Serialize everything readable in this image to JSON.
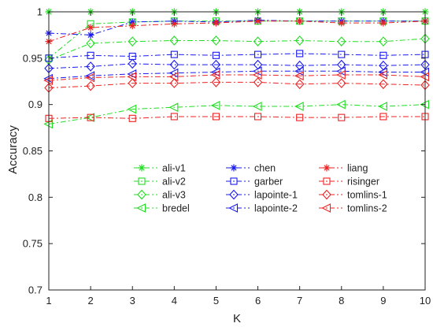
{
  "chart_data": {
    "type": "line",
    "title": "",
    "xlabel": "K",
    "ylabel": "Accuracy",
    "xlim": [
      1,
      10
    ],
    "ylim": [
      0.7,
      1.0
    ],
    "x": [
      1,
      2,
      3,
      4,
      5,
      6,
      7,
      8,
      9,
      10
    ],
    "x_ticks": [
      "1",
      "2",
      "3",
      "4",
      "5",
      "6",
      "7",
      "8",
      "9",
      "10"
    ],
    "y_ticks": [
      "0.7",
      "0.75",
      "0.8",
      "0.85",
      "0.9",
      "0.95",
      "1"
    ],
    "grid": false,
    "legend_position": "center",
    "legend_columns": 3,
    "series": [
      {
        "name": "ali-v1",
        "color": "#22dd22",
        "marker": "asterisk",
        "values": [
          1.0,
          1.0,
          1.0,
          1.0,
          1.0,
          1.0,
          1.0,
          1.0,
          1.0,
          1.0
        ]
      },
      {
        "name": "ali-v2",
        "color": "#22dd22",
        "marker": "square",
        "values": [
          0.95,
          0.987,
          0.989,
          0.99,
          0.99,
          0.99,
          0.99,
          0.99,
          0.99,
          0.99
        ]
      },
      {
        "name": "ali-v3",
        "color": "#22dd22",
        "marker": "diamond",
        "values": [
          0.948,
          0.966,
          0.968,
          0.969,
          0.969,
          0.968,
          0.969,
          0.968,
          0.968,
          0.971
        ]
      },
      {
        "name": "bredel",
        "color": "#22dd22",
        "marker": "triangle-left",
        "values": [
          0.879,
          0.886,
          0.895,
          0.897,
          0.899,
          0.898,
          0.898,
          0.9,
          0.898,
          0.9
        ]
      },
      {
        "name": "chen",
        "color": "#1a1aee",
        "marker": "asterisk",
        "values": [
          0.977,
          0.975,
          0.989,
          0.99,
          0.989,
          0.991,
          0.99,
          0.99,
          0.99,
          0.99
        ]
      },
      {
        "name": "garber",
        "color": "#1a1aee",
        "marker": "square",
        "values": [
          0.95,
          0.953,
          0.952,
          0.954,
          0.953,
          0.954,
          0.955,
          0.954,
          0.953,
          0.954
        ]
      },
      {
        "name": "lapointe-1",
        "color": "#1a1aee",
        "marker": "diamond",
        "values": [
          0.939,
          0.941,
          0.944,
          0.943,
          0.943,
          0.943,
          0.942,
          0.943,
          0.942,
          0.943
        ]
      },
      {
        "name": "lapointe-2",
        "color": "#1a1aee",
        "marker": "triangle-left",
        "values": [
          0.928,
          0.931,
          0.933,
          0.934,
          0.935,
          0.936,
          0.936,
          0.936,
          0.935,
          0.935
        ]
      },
      {
        "name": "liang",
        "color": "#ee2222",
        "marker": "asterisk",
        "values": [
          0.968,
          0.983,
          0.985,
          0.987,
          0.988,
          0.99,
          0.99,
          0.988,
          0.988,
          0.99
        ]
      },
      {
        "name": "risinger",
        "color": "#ee2222",
        "marker": "square",
        "values": [
          0.885,
          0.886,
          0.885,
          0.887,
          0.887,
          0.887,
          0.886,
          0.886,
          0.887,
          0.887
        ]
      },
      {
        "name": "tomlins-1",
        "color": "#ee2222",
        "marker": "diamond",
        "values": [
          0.918,
          0.92,
          0.923,
          0.923,
          0.924,
          0.924,
          0.922,
          0.923,
          0.922,
          0.921
        ]
      },
      {
        "name": "tomlins-2",
        "color": "#ee2222",
        "marker": "triangle-left",
        "values": [
          0.926,
          0.929,
          0.93,
          0.93,
          0.932,
          0.932,
          0.931,
          0.932,
          0.932,
          0.93
        ]
      }
    ]
  }
}
